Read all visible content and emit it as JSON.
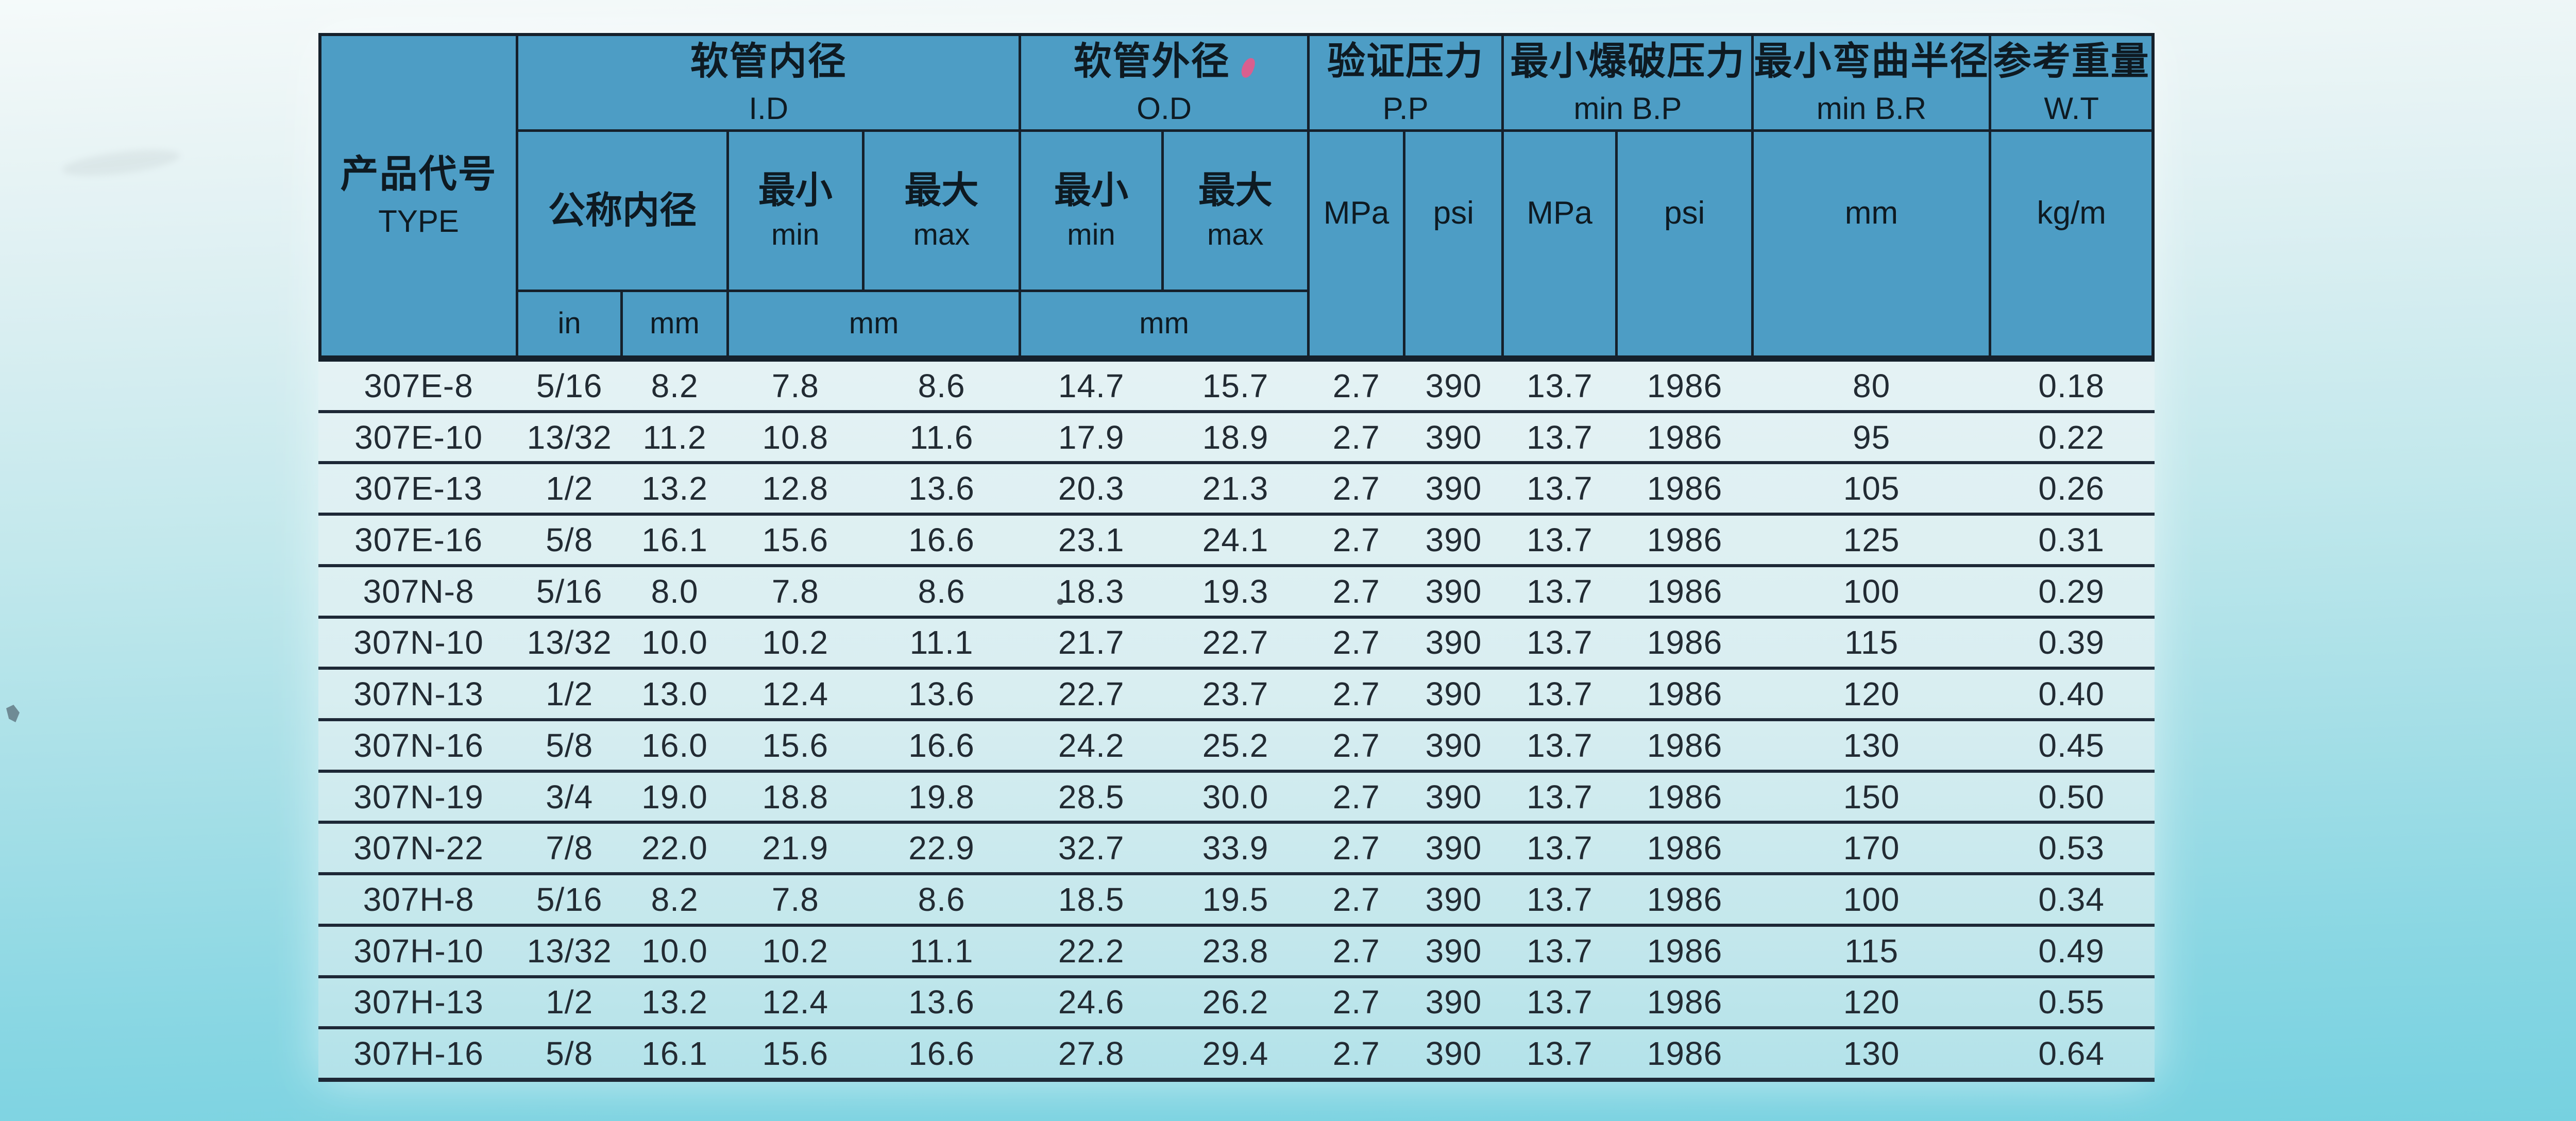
{
  "table": {
    "header": {
      "type": {
        "zh": "产品代号",
        "en": "TYPE"
      },
      "id": {
        "zh": "软管内径",
        "en": "I.D"
      },
      "od": {
        "zh": "软管外径",
        "en": "O.D"
      },
      "pp": {
        "zh": "验证压力",
        "en": "P.P"
      },
      "bp": {
        "zh": "最小爆破压力",
        "en": "min B.P"
      },
      "br": {
        "zh": "最小弯曲半径",
        "en": "min B.R"
      },
      "wt": {
        "zh": "参考重量",
        "en": "W.T"
      },
      "nominal": "公称内径",
      "min": {
        "zh": "最小",
        "en": "min"
      },
      "max": {
        "zh": "最大",
        "en": "max"
      },
      "units": {
        "in": "in",
        "mm": "mm",
        "mpa": "MPa",
        "psi": "psi",
        "kgm": "kg/m"
      }
    },
    "rows": [
      [
        "307E-8",
        "5/16",
        "8.2",
        "7.8",
        "8.6",
        "14.7",
        "15.7",
        "2.7",
        "390",
        "13.7",
        "1986",
        "80",
        "0.18"
      ],
      [
        "307E-10",
        "13/32",
        "11.2",
        "10.8",
        "11.6",
        "17.9",
        "18.9",
        "2.7",
        "390",
        "13.7",
        "1986",
        "95",
        "0.22"
      ],
      [
        "307E-13",
        "1/2",
        "13.2",
        "12.8",
        "13.6",
        "20.3",
        "21.3",
        "2.7",
        "390",
        "13.7",
        "1986",
        "105",
        "0.26"
      ],
      [
        "307E-16",
        "5/8",
        "16.1",
        "15.6",
        "16.6",
        "23.1",
        "24.1",
        "2.7",
        "390",
        "13.7",
        "1986",
        "125",
        "0.31"
      ],
      [
        "307N-8",
        "5/16",
        "8.0",
        "7.8",
        "8.6",
        "18.3",
        "19.3",
        "2.7",
        "390",
        "13.7",
        "1986",
        "100",
        "0.29"
      ],
      [
        "307N-10",
        "13/32",
        "10.0",
        "10.2",
        "11.1",
        "21.7",
        "22.7",
        "2.7",
        "390",
        "13.7",
        "1986",
        "115",
        "0.39"
      ],
      [
        "307N-13",
        "1/2",
        "13.0",
        "12.4",
        "13.6",
        "22.7",
        "23.7",
        "2.7",
        "390",
        "13.7",
        "1986",
        "120",
        "0.40"
      ],
      [
        "307N-16",
        "5/8",
        "16.0",
        "15.6",
        "16.6",
        "24.2",
        "25.2",
        "2.7",
        "390",
        "13.7",
        "1986",
        "130",
        "0.45"
      ],
      [
        "307N-19",
        "3/4",
        "19.0",
        "18.8",
        "19.8",
        "28.5",
        "30.0",
        "2.7",
        "390",
        "13.7",
        "1986",
        "150",
        "0.50"
      ],
      [
        "307N-22",
        "7/8",
        "22.0",
        "21.9",
        "22.9",
        "32.7",
        "33.9",
        "2.7",
        "390",
        "13.7",
        "1986",
        "170",
        "0.53"
      ],
      [
        "307H-8",
        "5/16",
        "8.2",
        "7.8",
        "8.6",
        "18.5",
        "19.5",
        "2.7",
        "390",
        "13.7",
        "1986",
        "100",
        "0.34"
      ],
      [
        "307H-10",
        "13/32",
        "10.0",
        "10.2",
        "11.1",
        "22.2",
        "23.8",
        "2.7",
        "390",
        "13.7",
        "1986",
        "115",
        "0.49"
      ],
      [
        "307H-13",
        "1/2",
        "13.2",
        "12.4",
        "13.6",
        "24.6",
        "26.2",
        "2.7",
        "390",
        "13.7",
        "1986",
        "120",
        "0.55"
      ],
      [
        "307H-16",
        "5/8",
        "16.1",
        "15.6",
        "16.6",
        "27.8",
        "29.4",
        "2.7",
        "390",
        "13.7",
        "1986",
        "130",
        "0.64"
      ]
    ]
  },
  "colors": {
    "header_bg": "#4d9dc5",
    "grid_line": "#15202b",
    "row_separator": "#1d2836",
    "row_bg": "#d9eef1",
    "page_top": "#f5fafa",
    "page_bottom": "#76d1e0",
    "red_mark": "#d95f8f",
    "text": "#101820"
  }
}
